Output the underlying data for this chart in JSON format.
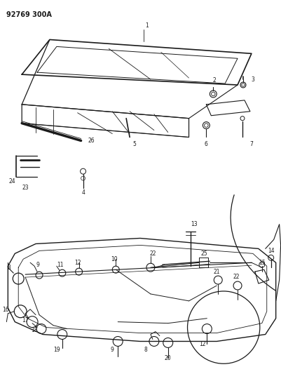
{
  "title": "92769 300A",
  "bg_color": "#ffffff",
  "line_color": "#1a1a1a",
  "fig_width": 4.02,
  "fig_height": 5.33,
  "dpi": 100
}
